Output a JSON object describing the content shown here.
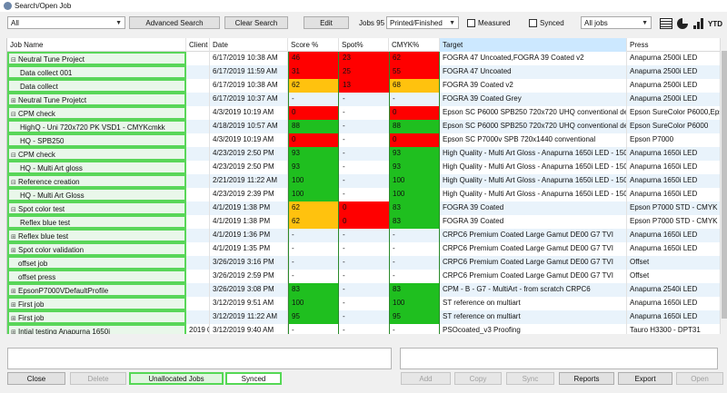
{
  "window": {
    "title": "Search/Open Job"
  },
  "toolbar": {
    "filter_value": "All",
    "advanced_search": "Advanced Search",
    "clear_search": "Clear Search",
    "edit": "Edit",
    "jobs_count": "Jobs 95",
    "status_value": "Printed/Finished",
    "measured_label": "Measured",
    "synced_label": "Synced",
    "jobs_filter_value": "All jobs",
    "ytd_label": "YTD"
  },
  "columns": {
    "job_name": "Job Name",
    "client": "Client",
    "date": "Date",
    "score": "Score %",
    "spot": "Spot%",
    "cmyk": "CMYK%",
    "target": "Target",
    "press": "Press"
  },
  "colors": {
    "red": "#ff0000",
    "orange": "#ffc20e",
    "green": "#1fbf1f",
    "outline": "#59d659"
  },
  "rows": [
    {
      "expander": "⊟",
      "child": false,
      "name": "Neutral Tune Project",
      "client": "",
      "date": "6/17/2019 10:38 AM",
      "score": "46",
      "score_c": "red",
      "spot": "23",
      "spot_c": "red",
      "cmyk": "62",
      "cmyk_c": "red",
      "target": "FOGRA 47 Uncoated,FOGRA 39 Coated v2",
      "press": "Anapurna 2500i LED"
    },
    {
      "expander": "",
      "child": true,
      "name": "Data collect 001",
      "client": "",
      "date": "6/17/2019 11:59 AM",
      "score": "31",
      "score_c": "red",
      "spot": "25",
      "spot_c": "red",
      "cmyk": "55",
      "cmyk_c": "red",
      "target": "FOGRA 47 Uncoated",
      "press": "Anapurna 2500i LED"
    },
    {
      "expander": "",
      "child": true,
      "name": "Data collect",
      "client": "",
      "date": "6/17/2019 10:38 AM",
      "score": "62",
      "score_c": "orange",
      "spot": "13",
      "spot_c": "red",
      "cmyk": "68",
      "cmyk_c": "orange",
      "target": "FOGRA 39 Coated v2",
      "press": "Anapurna 2500i LED"
    },
    {
      "expander": "⊞",
      "child": false,
      "name": "Neutral Tune Projetct",
      "client": "",
      "date": "6/17/2019 10:37 AM",
      "score": "-",
      "score_c": "",
      "spot": "-",
      "spot_c": "",
      "cmyk": "-",
      "cmyk_c": "",
      "target": "FOGRA 39 Coated Grey",
      "press": "Anapurna 2500i LED"
    },
    {
      "expander": "⊟",
      "child": false,
      "name": "CPM check",
      "client": "",
      "date": "4/3/2019 10:19 AM",
      "score": "0",
      "score_c": "red",
      "spot": "-",
      "spot_c": "",
      "cmyk": "0",
      "cmyk_c": "red",
      "target": "Epson SC P6000 SPB250 720x720 UHQ conventional deltaE 3",
      "press": "Epson SureColor P6000,Epson"
    },
    {
      "expander": "",
      "child": true,
      "name": "HighQ - Uni 720x720 PK VSD1 - CMYKcmkk",
      "client": "",
      "date": "4/18/2019 10:57 AM",
      "score": "88",
      "score_c": "green",
      "spot": "-",
      "spot_c": "",
      "cmyk": "88",
      "cmyk_c": "green",
      "target": "Epson SC P6000 SPB250 720x720 UHQ conventional deltaE 3",
      "press": "Epson SureColor P6000"
    },
    {
      "expander": "",
      "child": true,
      "name": "HQ - SPB250",
      "client": "",
      "date": "4/3/2019 10:19 AM",
      "score": "0",
      "score_c": "red",
      "spot": "-",
      "spot_c": "",
      "cmyk": "0",
      "cmyk_c": "red",
      "target": "Epson SC P7000v SPB 720x1440 conventional",
      "press": "Epson P7000"
    },
    {
      "expander": "⊟",
      "child": false,
      "name": "CPM check",
      "client": "",
      "date": "4/23/2019 2:50 PM",
      "score": "93",
      "score_c": "green",
      "spot": "-",
      "spot_c": "",
      "cmyk": "93",
      "cmyk_c": "green",
      "target": "High Quality - Multi Art Gloss - Anapurna 1650i LED - 1501",
      "press": "Anapurna 1650i LED"
    },
    {
      "expander": "",
      "child": true,
      "name": "HQ - Multi Art gloss",
      "client": "",
      "date": "4/23/2019 2:50 PM",
      "score": "93",
      "score_c": "green",
      "spot": "-",
      "spot_c": "",
      "cmyk": "93",
      "cmyk_c": "green",
      "target": "High Quality - Multi Art Gloss - Anapurna 1650i LED - 1501",
      "press": "Anapurna 1650i LED"
    },
    {
      "expander": "⊟",
      "child": false,
      "name": "Reference creation",
      "client": "",
      "date": "2/21/2019 11:22 AM",
      "score": "100",
      "score_c": "green",
      "spot": "-",
      "spot_c": "",
      "cmyk": "100",
      "cmyk_c": "green",
      "target": "High Quality - Multi Art Gloss - Anapurna 1650i LED - 1501",
      "press": "Anapurna 1650i LED"
    },
    {
      "expander": "",
      "child": true,
      "name": "HQ - Multi Art Gloss",
      "client": "",
      "date": "4/23/2019 2:39 PM",
      "score": "100",
      "score_c": "green",
      "spot": "-",
      "spot_c": "",
      "cmyk": "100",
      "cmyk_c": "green",
      "target": "High Quality - Multi Art Gloss - Anapurna 1650i LED - 1501",
      "press": "Anapurna 1650i LED"
    },
    {
      "expander": "⊟",
      "child": false,
      "name": "Spot color test",
      "client": "",
      "date": "4/1/2019 1:38 PM",
      "score": "62",
      "score_c": "orange",
      "spot": "0",
      "spot_c": "red",
      "cmyk": "83",
      "cmyk_c": "green",
      "target": "FOGRA 39 Coated",
      "press": "Epson P7000 STD - CMYK"
    },
    {
      "expander": "",
      "child": true,
      "name": "Reflex blue test",
      "client": "",
      "date": "4/1/2019 1:38 PM",
      "score": "62",
      "score_c": "orange",
      "spot": "0",
      "spot_c": "red",
      "cmyk": "83",
      "cmyk_c": "green",
      "target": "FOGRA 39 Coated",
      "press": "Epson P7000 STD - CMYK"
    },
    {
      "expander": "⊞",
      "child": false,
      "name": "Reflex blue test",
      "client": "",
      "date": "4/1/2019 1:36 PM",
      "score": "-",
      "score_c": "",
      "spot": "-",
      "spot_c": "",
      "cmyk": "-",
      "cmyk_c": "",
      "target": "CRPC6 Premium Coated Large Gamut DE00 G7 TVI",
      "press": "Anapurna 1650i LED"
    },
    {
      "expander": "⊞",
      "child": false,
      "name": "Spot color validation",
      "client": "",
      "date": "4/1/2019 1:35 PM",
      "score": "-",
      "score_c": "",
      "spot": "-",
      "spot_c": "",
      "cmyk": "-",
      "cmyk_c": "",
      "target": "CRPC6 Premium Coated Large Gamut DE00 G7 TVI",
      "press": "Anapurna 1650i LED"
    },
    {
      "expander": "",
      "child": false,
      "name": "offset job",
      "client": "",
      "date": "3/26/2019 3:16 PM",
      "score": "-",
      "score_c": "",
      "spot": "-",
      "spot_c": "",
      "cmyk": "-",
      "cmyk_c": "",
      "target": "CRPC6 Premium Coated Large Gamut DE00 G7 TVI",
      "press": "Offset"
    },
    {
      "expander": "",
      "child": false,
      "name": "offset press",
      "client": "",
      "date": "3/26/2019 2:59 PM",
      "score": "-",
      "score_c": "",
      "spot": "-",
      "spot_c": "",
      "cmyk": "-",
      "cmyk_c": "",
      "target": "CRPC6 Premium Coated Large Gamut DE00 G7 TVI",
      "press": "Offset"
    },
    {
      "expander": "⊞",
      "child": false,
      "name": "EpsonP7000VDefaultProfile",
      "client": "",
      "date": "3/26/2019 3:08 PM",
      "score": "83",
      "score_c": "green",
      "spot": "-",
      "spot_c": "",
      "cmyk": "83",
      "cmyk_c": "green",
      "target": "CPM - B - G7 - MultiArt - from scratch CRPC6",
      "press": "Anapurna 2540i LED"
    },
    {
      "expander": "⊞",
      "child": false,
      "name": "First job",
      "client": "",
      "date": "3/12/2019 9:51 AM",
      "score": "100",
      "score_c": "green",
      "spot": "-",
      "spot_c": "",
      "cmyk": "100",
      "cmyk_c": "green",
      "target": "ST reference on multiart",
      "press": "Anapurna 1650i LED"
    },
    {
      "expander": "⊞",
      "child": false,
      "name": "First job",
      "client": "",
      "date": "3/12/2019 11:22 AM",
      "score": "95",
      "score_c": "green",
      "spot": "-",
      "spot_c": "",
      "cmyk": "95",
      "cmyk_c": "green",
      "target": "ST reference on multiart",
      "press": "Anapurna 1650i LED"
    },
    {
      "expander": "⊞",
      "child": false,
      "name": "Intial testing Anapurna 1650i",
      "client": "2019 0",
      "date": "3/12/2019 9:40 AM",
      "score": "-",
      "score_c": "",
      "spot": "-",
      "spot_c": "",
      "cmyk": "-",
      "cmyk_c": "",
      "target": "PSOcoated_v3 Proofing",
      "press": "Tauro H3300 - DPT31"
    }
  ],
  "bottom": {
    "close": "Close",
    "delete": "Delete",
    "unallocated": "Unallocated Jobs",
    "synced": "Synced",
    "add": "Add",
    "copy": "Copy",
    "sync": "Sync",
    "reports": "Reports",
    "export": "Export",
    "open": "Open"
  }
}
